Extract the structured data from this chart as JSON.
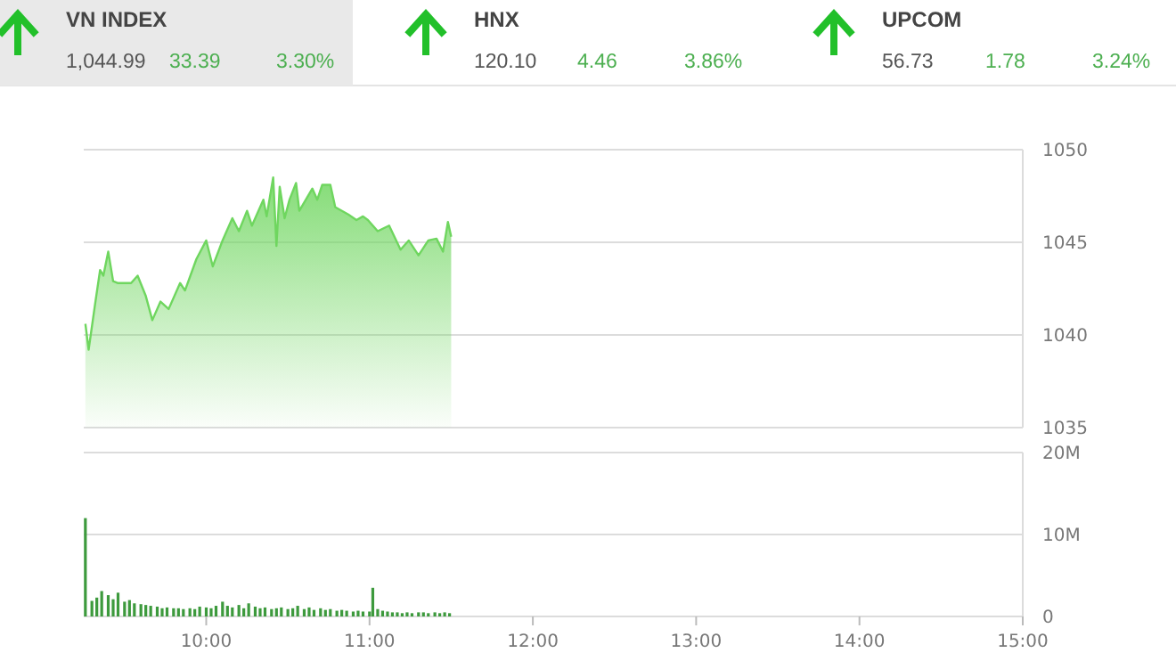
{
  "chart_data": [
    {
      "type": "other",
      "annotations": [
        "VN INDEX",
        "1,044.99",
        "33.39",
        "3.30%",
        "HNX",
        "120.10",
        "4.46",
        "3.86%",
        "UPCOM",
        "56.73",
        "1.78",
        "3.24%"
      ]
    },
    {
      "type": "area",
      "color": "#6fd65f",
      "xlim": [
        9.25,
        15
      ],
      "ylim": [
        1035,
        1050
      ],
      "yticks": [
        1035,
        1040,
        1045,
        1050
      ],
      "grid": "y",
      "tick_labels": "y",
      "x": [
        9.26,
        9.28,
        9.32,
        9.35,
        9.37,
        9.4,
        9.43,
        9.46,
        9.54,
        9.58,
        9.63,
        9.67,
        9.72,
        9.77,
        9.84,
        9.87,
        9.94,
        10.0,
        10.04,
        10.1,
        10.16,
        10.2,
        10.25,
        10.28,
        10.35,
        10.37,
        10.41,
        10.43,
        10.45,
        10.48,
        10.51,
        10.55,
        10.57,
        10.61,
        10.65,
        10.68,
        10.71,
        10.76,
        10.79,
        10.87,
        10.92,
        10.96,
        10.99,
        11.05,
        11.12,
        11.19,
        11.24,
        11.3,
        11.36,
        11.41,
        11.45,
        11.48,
        11.5
      ],
      "values": [
        1040.6,
        1039.2,
        1041.7,
        1043.5,
        1043.2,
        1044.5,
        1042.9,
        1042.8,
        1042.8,
        1043.2,
        1042.1,
        1040.8,
        1041.8,
        1041.4,
        1042.8,
        1042.4,
        1044.1,
        1045.1,
        1043.7,
        1045.1,
        1046.3,
        1045.6,
        1046.7,
        1045.9,
        1047.3,
        1046.4,
        1048.5,
        1044.8,
        1048.0,
        1046.3,
        1047.3,
        1048.2,
        1046.7,
        1047.3,
        1047.9,
        1047.3,
        1048.1,
        1048.1,
        1046.9,
        1046.5,
        1046.2,
        1046.4,
        1046.2,
        1045.6,
        1045.9,
        1044.6,
        1045.1,
        1044.3,
        1045.1,
        1045.2,
        1044.5,
        1046.1,
        1045.3
      ]
    },
    {
      "type": "bar",
      "color": "#3d9a3d",
      "xlim": [
        9.25,
        15
      ],
      "xticks": [
        {
          "value": 10,
          "label": "10:00"
        },
        {
          "value": 11,
          "label": "11:00"
        },
        {
          "value": 12,
          "label": "12:00"
        },
        {
          "value": 13,
          "label": "13:00"
        },
        {
          "value": 14,
          "label": "14:00"
        },
        {
          "value": 15,
          "label": "15:00"
        }
      ],
      "ylim": [
        0,
        20
      ],
      "yticks": [
        {
          "value": 0,
          "label": "0"
        },
        {
          "value": 10,
          "label": "10M"
        },
        {
          "value": 20,
          "label": "20M"
        }
      ],
      "grid": "y",
      "x": [
        9.26,
        9.3,
        9.33,
        9.36,
        9.4,
        9.43,
        9.46,
        9.5,
        9.53,
        9.56,
        9.6,
        9.63,
        9.66,
        9.7,
        9.73,
        9.76,
        9.8,
        9.83,
        9.86,
        9.9,
        9.93,
        9.96,
        10.0,
        10.03,
        10.06,
        10.1,
        10.13,
        10.16,
        10.2,
        10.23,
        10.26,
        10.3,
        10.33,
        10.36,
        10.4,
        10.43,
        10.46,
        10.5,
        10.53,
        10.56,
        10.6,
        10.63,
        10.66,
        10.7,
        10.73,
        10.76,
        10.8,
        10.83,
        10.86,
        10.9,
        10.93,
        10.96,
        11.0,
        11.02,
        11.05,
        11.08,
        11.11,
        11.14,
        11.17,
        11.2,
        11.23,
        11.26,
        11.3,
        11.33,
        11.36,
        11.4,
        11.43,
        11.46,
        11.49
      ],
      "values": [
        12.0,
        1.9,
        2.3,
        3.1,
        2.6,
        2.1,
        2.9,
        1.8,
        2.0,
        1.6,
        1.5,
        1.4,
        1.3,
        1.2,
        1.0,
        1.1,
        1.0,
        1.0,
        0.9,
        1.0,
        0.9,
        1.2,
        1.1,
        1.0,
        1.3,
        1.8,
        1.3,
        1.1,
        1.4,
        1.0,
        1.6,
        1.2,
        1.0,
        1.1,
        0.9,
        1.0,
        1.1,
        0.9,
        1.0,
        1.3,
        0.9,
        1.1,
        0.8,
        1.0,
        0.8,
        0.9,
        0.7,
        0.8,
        0.7,
        0.6,
        0.7,
        0.6,
        0.6,
        3.5,
        0.9,
        0.7,
        0.6,
        0.5,
        0.5,
        0.4,
        0.5,
        0.4,
        0.5,
        0.5,
        0.4,
        0.5,
        0.4,
        0.5,
        0.4
      ]
    }
  ]
}
